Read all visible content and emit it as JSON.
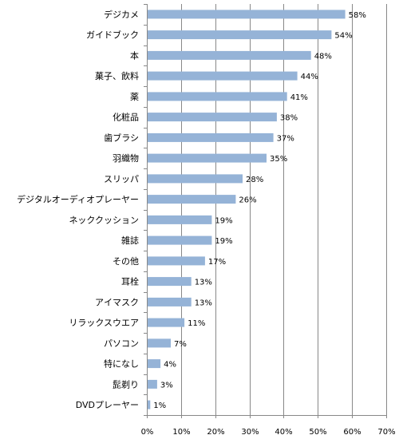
{
  "chart_data": {
    "type": "bar",
    "orientation": "horizontal",
    "categories": [
      "デジカメ",
      "ガイドブック",
      "本",
      "菓子、飲料",
      "薬",
      "化粧品",
      "歯ブラシ",
      "羽織物",
      "スリッパ",
      "デジタルオーディオプレーヤー",
      "ネッククッション",
      "雑誌",
      "その他",
      "耳栓",
      "アイマスク",
      "リラックスウエア",
      "パソコン",
      "特になし",
      "髭剃り",
      "DVDプレーヤー"
    ],
    "values": [
      58,
      54,
      48,
      44,
      41,
      38,
      37,
      35,
      28,
      26,
      19,
      19,
      17,
      13,
      13,
      11,
      7,
      4,
      3,
      1
    ],
    "data_labels": [
      "58%",
      "54%",
      "48%",
      "44%",
      "41%",
      "38%",
      "37%",
      "35%",
      "28%",
      "26%",
      "19%",
      "19%",
      "17%",
      "13%",
      "13%",
      "11%",
      "7%",
      "4%",
      "3%",
      "1%"
    ],
    "xlim": [
      0,
      70
    ],
    "x_ticks": [
      0,
      10,
      20,
      30,
      40,
      50,
      60,
      70
    ],
    "x_tick_labels": [
      "0%",
      "10%",
      "20%",
      "30%",
      "40%",
      "50%",
      "60%",
      "70%"
    ],
    "title": "",
    "xlabel": "",
    "ylabel": "",
    "grid": "vertical",
    "legend": "none",
    "colors": {
      "bar": "#95b3d7",
      "bar_edge": "#7f9fc8",
      "grid": "#888888",
      "axis": "#888888",
      "text": "#000000"
    }
  }
}
